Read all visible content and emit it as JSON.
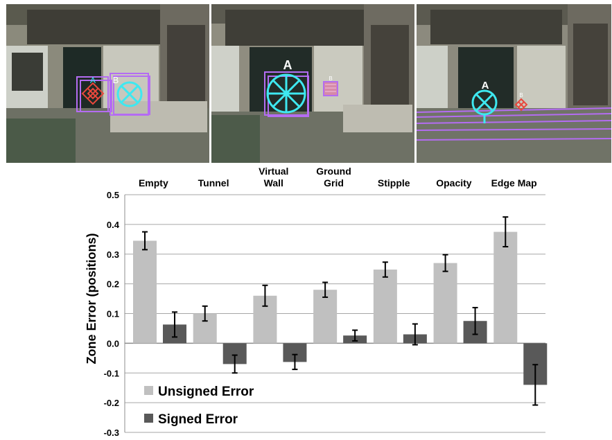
{
  "photos": [
    {
      "markers": [
        {
          "label": "A",
          "symbol": "diamond"
        },
        {
          "label": "B",
          "symbol": "circle-x"
        }
      ]
    },
    {
      "markers": [
        {
          "label": "A",
          "symbol": "circle-spokes"
        },
        {
          "label": "B",
          "symbol": "hatched-square"
        }
      ]
    },
    {
      "markers": [
        {
          "label": "A",
          "symbol": "circle-x"
        },
        {
          "label": "B",
          "symbol": "diamond"
        }
      ]
    }
  ],
  "colors": {
    "unsigned": "#c0c0c0",
    "signed": "#595959",
    "grid": "#a6a6a6",
    "marker_cyan": "#3ee8f0",
    "marker_red": "#e8483c",
    "frame_purple": "#b46cf2"
  },
  "chart_data": {
    "type": "bar",
    "categories": [
      "Empty",
      "Tunnel",
      "Virtual\nWall",
      "Ground\nGrid",
      "Stipple",
      "Opacity",
      "Edge Map"
    ],
    "ylabel": "Zone Error (positions)",
    "ylim": [
      -0.3,
      0.5
    ],
    "yticks": [
      "0.5",
      "0.4",
      "0.3",
      "0.2",
      "0.1",
      "0.0",
      "-0.1",
      "-0.2",
      "-0.3"
    ],
    "grid": true,
    "legend_position": "bottom-left",
    "series": [
      {
        "name": "Unsigned Error",
        "values": [
          0.345,
          0.1,
          0.16,
          0.18,
          0.248,
          0.27,
          0.375
        ],
        "err": [
          0.03,
          0.025,
          0.035,
          0.025,
          0.025,
          0.028,
          0.05
        ]
      },
      {
        "name": "Signed Error",
        "values": [
          0.063,
          -0.07,
          -0.063,
          0.026,
          0.03,
          0.075,
          -0.14
        ],
        "err": [
          0.042,
          0.03,
          0.025,
          0.018,
          0.035,
          0.045,
          0.068
        ]
      }
    ]
  }
}
